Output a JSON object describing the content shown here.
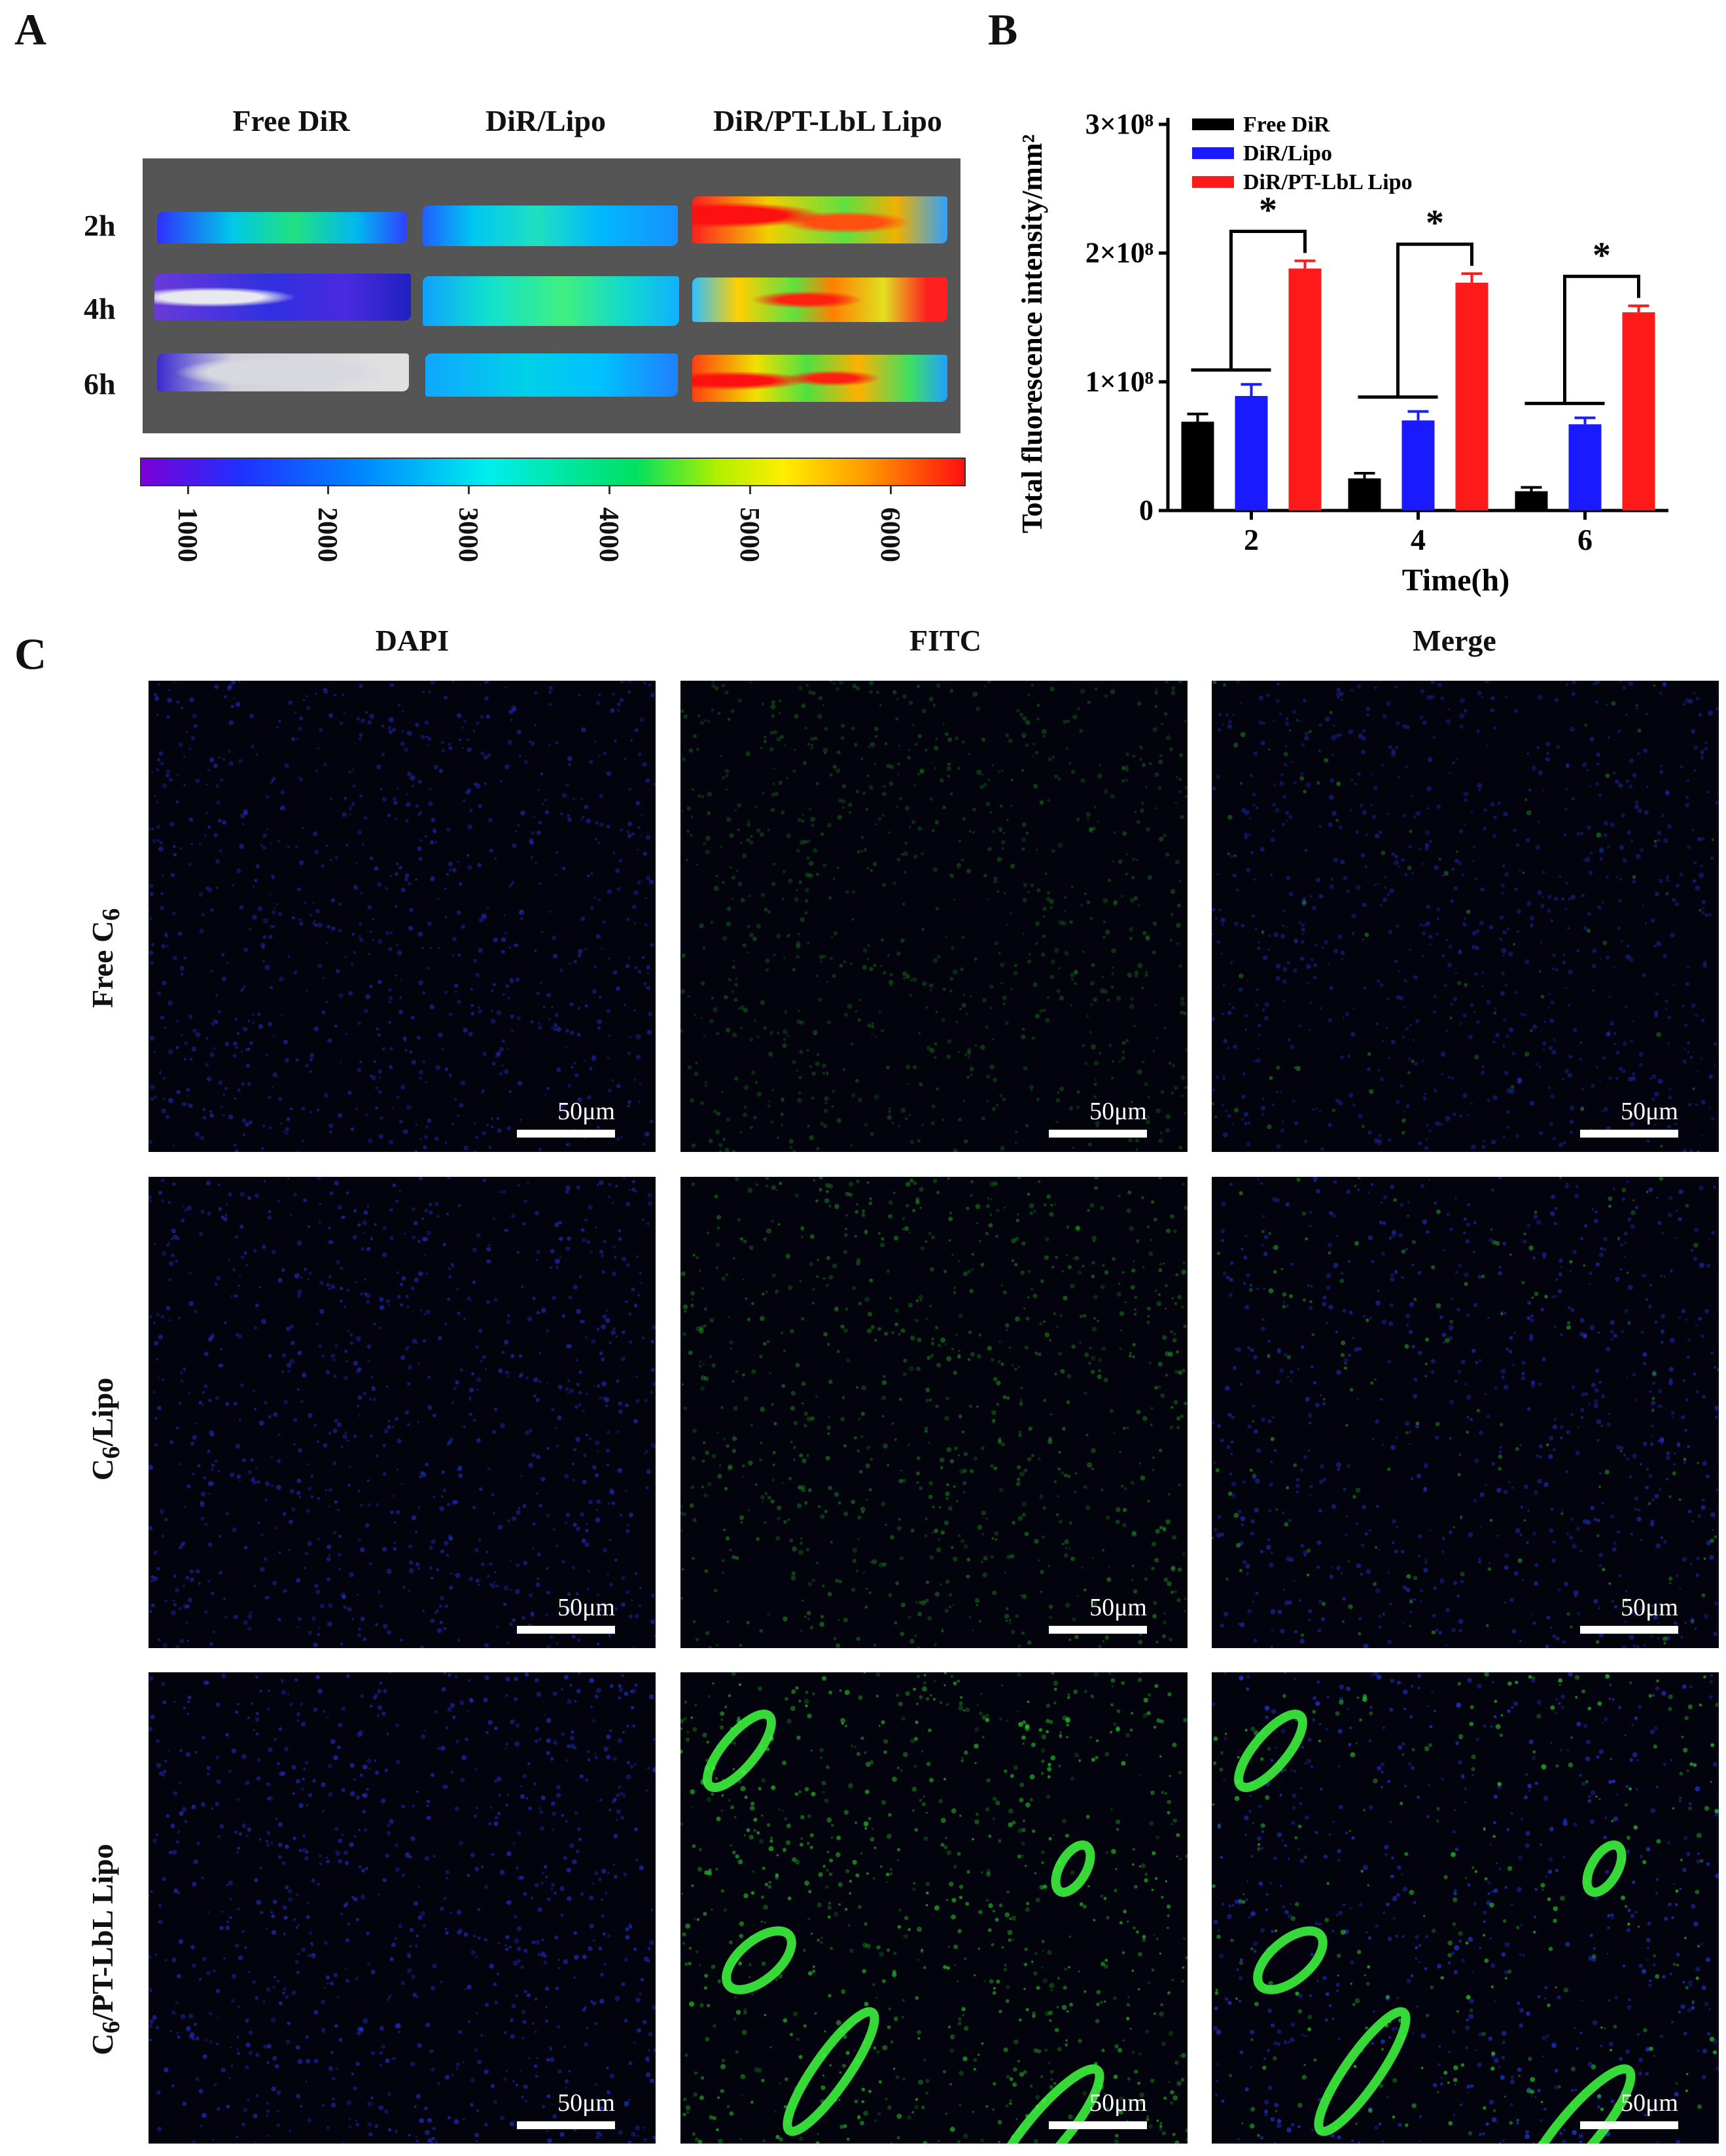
{
  "panels": {
    "a": {
      "letter": "A",
      "columns": [
        "Free DiR",
        "DiR/Lipo",
        "DiR/PT-LbL Lipo"
      ],
      "rows": [
        "2h",
        "4h",
        "6h"
      ],
      "colorbar_ticks": [
        "1000",
        "2000",
        "3000",
        "4000",
        "5000",
        "6000"
      ]
    },
    "b": {
      "letter": "B"
    },
    "c": {
      "letter": "C",
      "columns": [
        "DAPI",
        "FITC",
        "Merge"
      ],
      "scale_bar": "50μm",
      "row_parts": [
        {
          "pre": "Free C",
          "sub": "6",
          "post": ""
        },
        {
          "pre": "C",
          "sub": "6",
          "post": "/Lipo"
        },
        {
          "pre": "C",
          "sub": "6",
          "post": "/PT-LbL Lipo"
        }
      ]
    }
  },
  "chart_data": {
    "type": "bar",
    "categories": [
      "2",
      "4",
      "6"
    ],
    "series": [
      {
        "name": "Free DiR",
        "values": [
          0.69,
          0.25,
          0.15
        ],
        "errors": [
          0.06,
          0.04,
          0.03
        ],
        "color": "#000000"
      },
      {
        "name": "DiR/Lipo",
        "values": [
          0.89,
          0.7,
          0.67
        ],
        "errors": [
          0.09,
          0.07,
          0.05
        ],
        "color": "#1a1aff"
      },
      {
        "name": "DiR/PT-LbL Lipo",
        "values": [
          1.88,
          1.77,
          1.54
        ],
        "errors": [
          0.06,
          0.07,
          0.05
        ],
        "color": "#ff1a1a"
      }
    ],
    "xlabel": "Time(h)",
    "ylabel": "Total fluorescence intensity/mm²",
    "yticks": [
      "0",
      "1×10⁸",
      "2×10⁸",
      "3×10⁸"
    ],
    "y_unit": "×10⁸",
    "ylim": [
      0,
      3
    ],
    "significance": [
      "*",
      "*",
      "*"
    ],
    "legend_position": "top-left"
  }
}
